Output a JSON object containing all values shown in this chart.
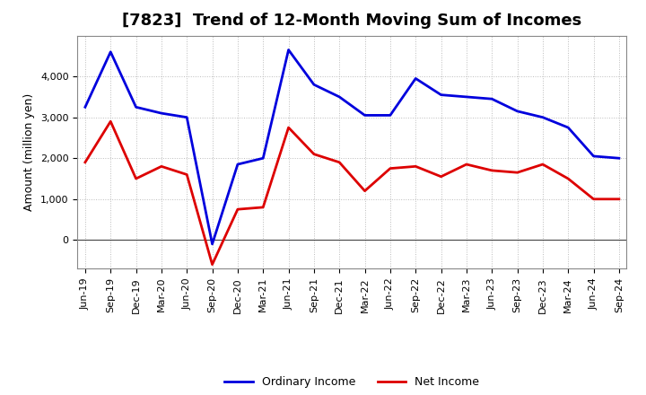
{
  "title": "[7823]  Trend of 12-Month Moving Sum of Incomes",
  "ylabel": "Amount (million yen)",
  "background_color": "#ffffff",
  "grid_color": "#bbbbbb",
  "xlabels": [
    "Jun-19",
    "Sep-19",
    "Dec-19",
    "Mar-20",
    "Jun-20",
    "Sep-20",
    "Dec-20",
    "Mar-21",
    "Jun-21",
    "Sep-21",
    "Dec-21",
    "Mar-22",
    "Jun-22",
    "Sep-22",
    "Dec-22",
    "Mar-23",
    "Jun-23",
    "Sep-23",
    "Dec-23",
    "Mar-24",
    "Jun-24",
    "Sep-24"
  ],
  "ordinary_income": [
    3250,
    4600,
    3250,
    3100,
    3000,
    -100,
    1850,
    2000,
    4650,
    3800,
    3500,
    3050,
    3050,
    3950,
    3550,
    3500,
    3450,
    3150,
    3000,
    2750,
    2050,
    2000
  ],
  "net_income": [
    1900,
    2900,
    1500,
    1800,
    1600,
    -600,
    750,
    800,
    2750,
    2100,
    1900,
    1200,
    1750,
    1800,
    1550,
    1850,
    1700,
    1650,
    1850,
    1500,
    1000,
    1000
  ],
  "ordinary_color": "#0000dd",
  "net_color": "#dd0000",
  "ylim_min": -700,
  "ylim_max": 5000,
  "yticks": [
    0,
    1000,
    2000,
    3000,
    4000
  ],
  "line_width": 2.0,
  "title_fontsize": 13,
  "axis_fontsize": 9,
  "tick_fontsize": 8,
  "legend_fontsize": 9
}
